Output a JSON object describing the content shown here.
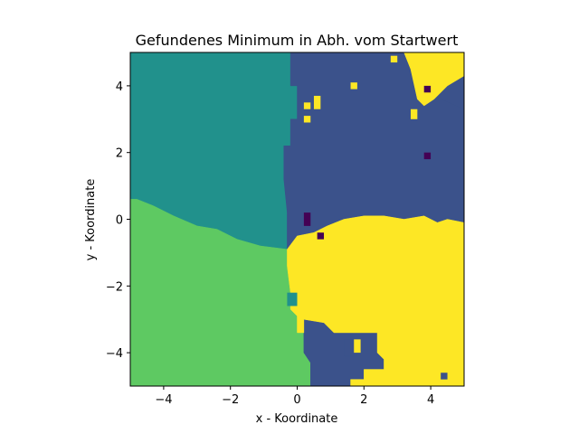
{
  "chart_data": {
    "type": "heatmap",
    "title": "Gefundenes Minimum in Abh. vom Startwert",
    "xlabel": "x - Koordinate",
    "ylabel": "y - Koordinate",
    "xlim": [
      -5,
      5
    ],
    "ylim": [
      -5,
      5
    ],
    "x_ticks": [
      -4,
      -2,
      0,
      2,
      4
    ],
    "y_ticks": [
      -4,
      -2,
      0,
      2,
      4
    ],
    "x_tick_labels": [
      "−4",
      "−2",
      "0",
      "2",
      "4"
    ],
    "y_tick_labels": [
      "−4",
      "−2",
      "0",
      "2",
      "4"
    ],
    "grid": false,
    "colormap": {
      "0": "#440154",
      "1": "#3b528b",
      "2": "#21918c",
      "3": "#5ec962",
      "4": "#fde725"
    },
    "regions": [
      {
        "value": 2,
        "polygon": [
          [
            -5,
            5
          ],
          [
            -0.2,
            5
          ],
          [
            -0.2,
            4
          ],
          [
            0,
            4
          ],
          [
            0,
            3
          ],
          [
            -0.2,
            3
          ],
          [
            -0.2,
            2.2
          ],
          [
            -0.4,
            2.2
          ],
          [
            -0.4,
            1.2
          ],
          [
            -0.3,
            0.2
          ],
          [
            -0.3,
            -0.9
          ],
          [
            -1.1,
            -0.8
          ],
          [
            -1.8,
            -0.6
          ],
          [
            -2.4,
            -0.3
          ],
          [
            -3.0,
            -0.2
          ],
          [
            -3.7,
            0.1
          ],
          [
            -4.3,
            0.4
          ],
          [
            -4.8,
            0.6
          ],
          [
            -5,
            0.6
          ]
        ]
      },
      {
        "value": 3,
        "polygon": [
          [
            -5,
            0.6
          ],
          [
            -4.8,
            0.6
          ],
          [
            -4.3,
            0.4
          ],
          [
            -3.7,
            0.1
          ],
          [
            -3.0,
            -0.2
          ],
          [
            -2.4,
            -0.3
          ],
          [
            -1.8,
            -0.6
          ],
          [
            -1.1,
            -0.8
          ],
          [
            -0.3,
            -0.9
          ],
          [
            -0.3,
            -1.4
          ],
          [
            -0.2,
            -2.2
          ],
          [
            -0.2,
            -2.7
          ],
          [
            0,
            -2.9
          ],
          [
            0,
            -3.4
          ],
          [
            0.2,
            -3.4
          ],
          [
            0.2,
            -4.0
          ],
          [
            0.4,
            -4.3
          ],
          [
            0.4,
            -5
          ],
          [
            -5,
            -5
          ]
        ]
      },
      {
        "value": 1,
        "polygon": [
          [
            -0.2,
            5
          ],
          [
            3.2,
            5
          ],
          [
            3.4,
            4.5
          ],
          [
            3.8,
            4.0
          ],
          [
            4.3,
            3.6
          ],
          [
            5,
            3.3
          ],
          [
            5,
            -0.1
          ],
          [
            4.5,
            0
          ],
          [
            4.2,
            -0.1
          ],
          [
            3.8,
            0.1
          ],
          [
            3.2,
            0
          ],
          [
            2.6,
            0.1
          ],
          [
            2.0,
            0.1
          ],
          [
            1.4,
            0
          ],
          [
            0.9,
            -0.2
          ],
          [
            0.5,
            -0.4
          ],
          [
            0,
            -0.5
          ],
          [
            -0.3,
            -0.9
          ],
          [
            -0.3,
            0.2
          ],
          [
            -0.4,
            1.2
          ],
          [
            -0.4,
            2.2
          ],
          [
            -0.2,
            2.2
          ],
          [
            -0.2,
            3
          ],
          [
            0,
            3
          ],
          [
            0,
            4
          ],
          [
            -0.2,
            4
          ]
        ]
      },
      {
        "value": 1,
        "polygon": [
          [
            0.2,
            -3.0
          ],
          [
            0.8,
            -3.1
          ],
          [
            1.1,
            -3.4
          ],
          [
            1.6,
            -3.4
          ],
          [
            2.4,
            -3.4
          ],
          [
            2.4,
            -4.0
          ],
          [
            2.6,
            -4.2
          ],
          [
            2.6,
            -4.5
          ],
          [
            2.0,
            -4.5
          ],
          [
            2.0,
            -4.8
          ],
          [
            1.6,
            -4.8
          ],
          [
            1.6,
            -5
          ],
          [
            0.4,
            -5
          ],
          [
            0.4,
            -4.3
          ],
          [
            0.2,
            -4.0
          ],
          [
            0.2,
            -3.4
          ]
        ]
      },
      {
        "value": 1,
        "polygon": [
          [
            4.2,
            -4.6
          ],
          [
            4.6,
            -4.6
          ],
          [
            4.6,
            -4.8
          ],
          [
            4.2,
            -4.8
          ]
        ]
      },
      {
        "value": 4,
        "polygon": [
          [
            5,
            -0.1
          ],
          [
            5,
            -5
          ],
          [
            1.6,
            -5
          ],
          [
            1.6,
            -4.8
          ],
          [
            2.0,
            -4.8
          ],
          [
            2.0,
            -4.5
          ],
          [
            2.6,
            -4.5
          ],
          [
            2.6,
            -4.2
          ],
          [
            2.4,
            -4.0
          ],
          [
            2.4,
            -3.4
          ],
          [
            1.6,
            -3.4
          ],
          [
            1.1,
            -3.4
          ],
          [
            0.8,
            -3.1
          ],
          [
            0.2,
            -3.0
          ],
          [
            0.2,
            -3.4
          ],
          [
            0,
            -3.4
          ],
          [
            0,
            -2.9
          ],
          [
            -0.2,
            -2.7
          ],
          [
            -0.2,
            -2.2
          ],
          [
            -0.3,
            -1.4
          ],
          [
            -0.3,
            -0.9
          ],
          [
            0,
            -0.5
          ],
          [
            0.5,
            -0.4
          ],
          [
            0.9,
            -0.2
          ],
          [
            1.4,
            0
          ],
          [
            2.0,
            0.1
          ],
          [
            2.6,
            0.1
          ],
          [
            3.2,
            0
          ],
          [
            3.8,
            0.1
          ],
          [
            4.2,
            -0.1
          ],
          [
            4.5,
            0
          ]
        ]
      },
      {
        "value": 4,
        "polygon": [
          [
            3.2,
            5
          ],
          [
            5,
            5
          ],
          [
            5,
            4.3
          ],
          [
            4.5,
            4.0
          ],
          [
            4.1,
            3.6
          ],
          [
            3.8,
            3.4
          ],
          [
            3.6,
            3.6
          ],
          [
            3.4,
            4.5
          ]
        ]
      },
      {
        "value": 1,
        "polygon": [
          [
            1.4,
            -3.6
          ],
          [
            1.8,
            -3.6
          ],
          [
            1.8,
            -4.1
          ],
          [
            1.4,
            -4.1
          ]
        ]
      }
    ],
    "patches": [
      {
        "value": 4,
        "x": 2.8,
        "y": 4.9,
        "w": 0.2,
        "h": 0.2
      },
      {
        "value": 4,
        "x": 0.5,
        "y": 3.7,
        "w": 0.2,
        "h": 0.4
      },
      {
        "value": 4,
        "x": 0.2,
        "y": 3.5,
        "w": 0.2,
        "h": 0.2
      },
      {
        "value": 4,
        "x": 0.2,
        "y": 3.1,
        "w": 0.2,
        "h": 0.2
      },
      {
        "value": 4,
        "x": 3.4,
        "y": 3.3,
        "w": 0.2,
        "h": 0.3
      },
      {
        "value": 4,
        "x": 1.6,
        "y": 4.1,
        "w": 0.2,
        "h": 0.2
      },
      {
        "value": 0,
        "x": 3.8,
        "y": 4.0,
        "w": 0.2,
        "h": 0.2
      },
      {
        "value": 0,
        "x": 3.8,
        "y": 2.0,
        "w": 0.2,
        "h": 0.2
      },
      {
        "value": 0,
        "x": 0.2,
        "y": 0.2,
        "w": 0.2,
        "h": 0.4
      },
      {
        "value": 0,
        "x": 0.6,
        "y": -0.4,
        "w": 0.2,
        "h": 0.2
      },
      {
        "value": 1,
        "x": 4.3,
        "y": -4.6,
        "w": 0.2,
        "h": 0.2
      },
      {
        "value": 2,
        "x": -0.3,
        "y": -2.2,
        "w": 0.3,
        "h": 0.4
      },
      {
        "value": 4,
        "x": 1.7,
        "y": -3.6,
        "w": 0.2,
        "h": 0.4
      }
    ]
  }
}
